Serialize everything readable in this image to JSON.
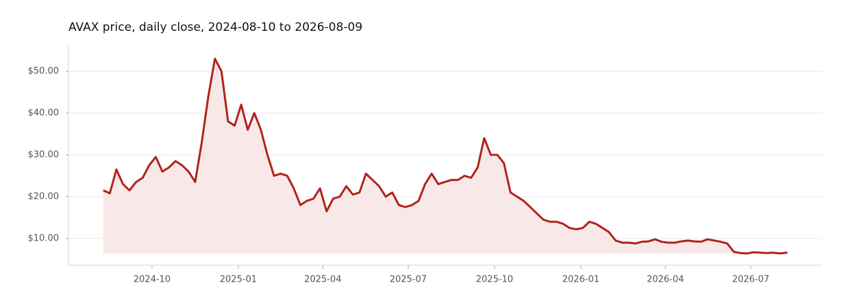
{
  "chart_data": {
    "type": "line",
    "title": "AVAX price, daily close, 2024-08-10 to 2026-08-09",
    "color": "#b0231a",
    "fill_color": "#f8e9e8",
    "grid": true,
    "x": [
      "2024-08-10",
      "2024-08-17",
      "2024-08-24",
      "2024-08-31",
      "2024-09-07",
      "2024-09-14",
      "2024-09-21",
      "2024-09-28",
      "2024-10-05",
      "2024-10-12",
      "2024-10-19",
      "2024-10-26",
      "2024-11-02",
      "2024-11-09",
      "2024-11-16",
      "2024-11-23",
      "2024-11-30",
      "2024-12-07",
      "2024-12-14",
      "2024-12-21",
      "2024-12-28",
      "2025-01-04",
      "2025-01-11",
      "2025-01-18",
      "2025-01-25",
      "2025-02-01",
      "2025-02-08",
      "2025-02-15",
      "2025-02-22",
      "2025-03-01",
      "2025-03-08",
      "2025-03-15",
      "2025-03-22",
      "2025-03-29",
      "2025-04-05",
      "2025-04-12",
      "2025-04-19",
      "2025-04-26",
      "2025-05-03",
      "2025-05-10",
      "2025-05-17",
      "2025-05-24",
      "2025-05-31",
      "2025-06-07",
      "2025-06-14",
      "2025-06-21",
      "2025-06-28",
      "2025-07-05",
      "2025-07-12",
      "2025-07-19",
      "2025-07-26",
      "2025-08-02",
      "2025-08-09",
      "2025-08-16",
      "2025-08-23",
      "2025-08-30",
      "2025-09-06",
      "2025-09-13",
      "2025-09-20",
      "2025-09-27",
      "2025-10-04",
      "2025-10-11",
      "2025-10-18",
      "2025-10-25",
      "2025-11-01",
      "2025-11-08",
      "2025-11-15",
      "2025-11-22",
      "2025-11-29",
      "2025-12-06",
      "2025-12-13",
      "2025-12-20",
      "2025-12-27",
      "2026-01-03",
      "2026-01-10",
      "2026-01-17",
      "2026-01-24",
      "2026-01-31",
      "2026-02-07",
      "2026-02-14",
      "2026-02-21",
      "2026-02-28",
      "2026-03-07",
      "2026-03-14",
      "2026-03-21",
      "2026-03-28",
      "2026-04-04",
      "2026-04-11",
      "2026-04-18",
      "2026-04-25",
      "2026-05-02",
      "2026-05-09",
      "2026-05-16",
      "2026-05-23",
      "2026-05-30",
      "2026-06-06",
      "2026-06-13",
      "2026-06-20",
      "2026-06-27",
      "2026-07-04",
      "2026-07-11",
      "2026-07-18",
      "2026-07-25",
      "2026-08-01",
      "2026-08-08",
      "2026-08-09"
    ],
    "values": [
      21.5,
      20.8,
      26.5,
      23,
      21.5,
      23.5,
      24.5,
      27.5,
      29.5,
      26,
      27,
      28.5,
      27.5,
      26,
      23.5,
      33,
      44,
      53,
      50,
      38,
      37,
      42,
      36,
      40,
      36,
      30,
      25,
      25.5,
      25,
      22,
      18,
      19,
      19.5,
      22,
      16.5,
      19.5,
      20,
      22.5,
      20.5,
      21,
      25.5,
      24,
      22.5,
      20,
      21,
      18,
      17.5,
      18,
      19,
      23,
      25.5,
      23,
      23.5,
      24,
      24,
      25,
      24.5,
      27,
      34,
      30,
      30,
      28,
      21,
      20,
      19,
      17.5,
      16,
      14.5,
      14,
      14,
      13.5,
      12.5,
      12.2,
      12.5,
      14,
      13.5,
      12.5,
      11.5,
      9.5,
      9,
      9,
      8.8,
      9.2,
      9.3,
      9.8,
      9.2,
      9,
      9,
      9.3,
      9.5,
      9.3,
      9.2,
      9.8,
      9.5,
      9.2,
      8.8,
      6.8,
      6.5,
      6.4,
      6.7,
      6.6,
      6.5,
      6.6,
      6.4,
      6.6,
      6.5
    ],
    "xlim": [
      "2024-07-04",
      "2026-09-15"
    ],
    "xticks": [
      {
        "value": "2024-10-01",
        "label": "2024-10"
      },
      {
        "value": "2025-01-01",
        "label": "2025-01"
      },
      {
        "value": "2025-04-01",
        "label": "2025-04"
      },
      {
        "value": "2025-07-01",
        "label": "2025-07"
      },
      {
        "value": "2025-10-01",
        "label": "2025-10"
      },
      {
        "value": "2026-01-01",
        "label": "2026-01"
      },
      {
        "value": "2026-04-01",
        "label": "2026-04"
      },
      {
        "value": "2026-07-01",
        "label": "2026-07"
      }
    ],
    "ylim": [
      3.6,
      56.4
    ],
    "yticks": [
      {
        "value": 10,
        "label": "$10.00"
      },
      {
        "value": 20,
        "label": "$20.00"
      },
      {
        "value": 30,
        "label": "$30.00"
      },
      {
        "value": 40,
        "label": "$40.00"
      },
      {
        "value": 50,
        "label": "$50.00"
      }
    ]
  }
}
